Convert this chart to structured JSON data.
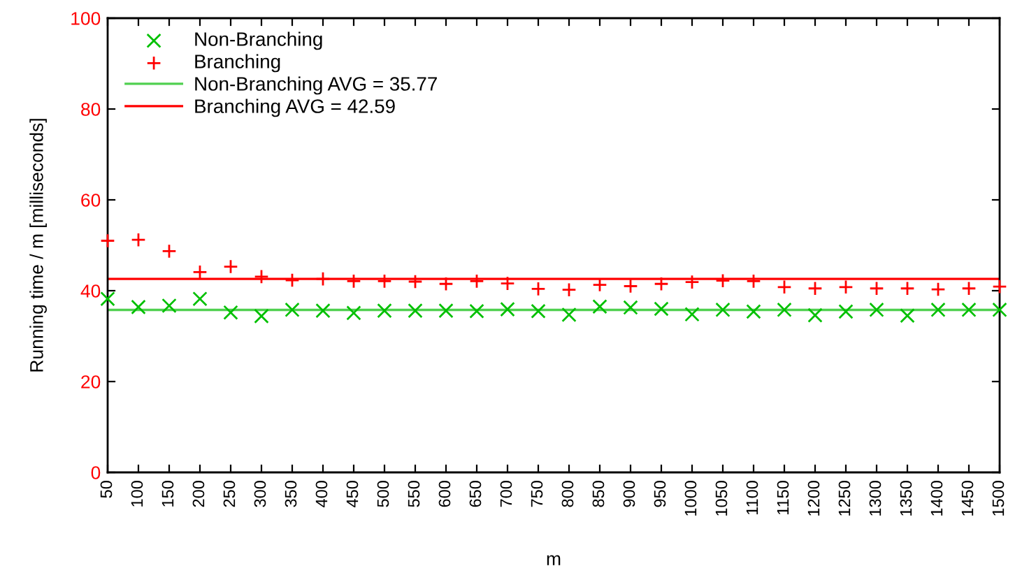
{
  "chart_data": {
    "type": "scatter",
    "xlabel": "m",
    "ylabel": "Running time / m [milliseconds]",
    "x": [
      50,
      100,
      150,
      200,
      250,
      300,
      350,
      400,
      450,
      500,
      550,
      600,
      650,
      700,
      750,
      800,
      850,
      900,
      950,
      1000,
      1050,
      1100,
      1150,
      1200,
      1250,
      1300,
      1350,
      1400,
      1450,
      1500
    ],
    "series": [
      {
        "name": "Non-Branching",
        "color": "#00c000",
        "marker": "cross",
        "values": [
          38.2,
          36.4,
          36.7,
          38.2,
          35.2,
          34.4,
          35.8,
          35.6,
          35.1,
          35.6,
          35.6,
          35.6,
          35.5,
          35.9,
          35.5,
          34.7,
          36.5,
          36.3,
          36.0,
          34.8,
          35.8,
          35.4,
          35.8,
          34.6,
          35.4,
          35.8,
          34.5,
          35.8,
          35.8,
          35.8
        ]
      },
      {
        "name": "Branching",
        "color": "#ff0000",
        "marker": "plus",
        "values": [
          51.0,
          51.2,
          48.7,
          44.1,
          45.3,
          43.1,
          42.3,
          42.6,
          42.1,
          42.1,
          42.0,
          41.5,
          42.1,
          41.6,
          40.4,
          40.2,
          41.3,
          41.0,
          41.5,
          41.9,
          42.2,
          42.1,
          40.8,
          40.5,
          40.8,
          40.5,
          40.5,
          40.3,
          40.5,
          40.9
        ]
      }
    ],
    "ref_lines": [
      {
        "axis": "y",
        "value": 35.77,
        "label": "Non-Branching AVG = 35.77",
        "color": "#50d050"
      },
      {
        "axis": "y",
        "value": 42.59,
        "label": "Branching AVG = 42.59",
        "color": "#ff0000"
      }
    ],
    "xlim": [
      50,
      1500
    ],
    "xticks": [
      50,
      100,
      150,
      200,
      250,
      300,
      350,
      400,
      450,
      500,
      550,
      600,
      650,
      700,
      750,
      800,
      850,
      900,
      950,
      1000,
      1050,
      1100,
      1150,
      1200,
      1250,
      1300,
      1350,
      1400,
      1450,
      1500
    ],
    "ylim": [
      0,
      100
    ],
    "yticks": [
      0,
      20,
      40,
      60,
      80,
      100
    ],
    "grid": false,
    "legend": "top left"
  }
}
